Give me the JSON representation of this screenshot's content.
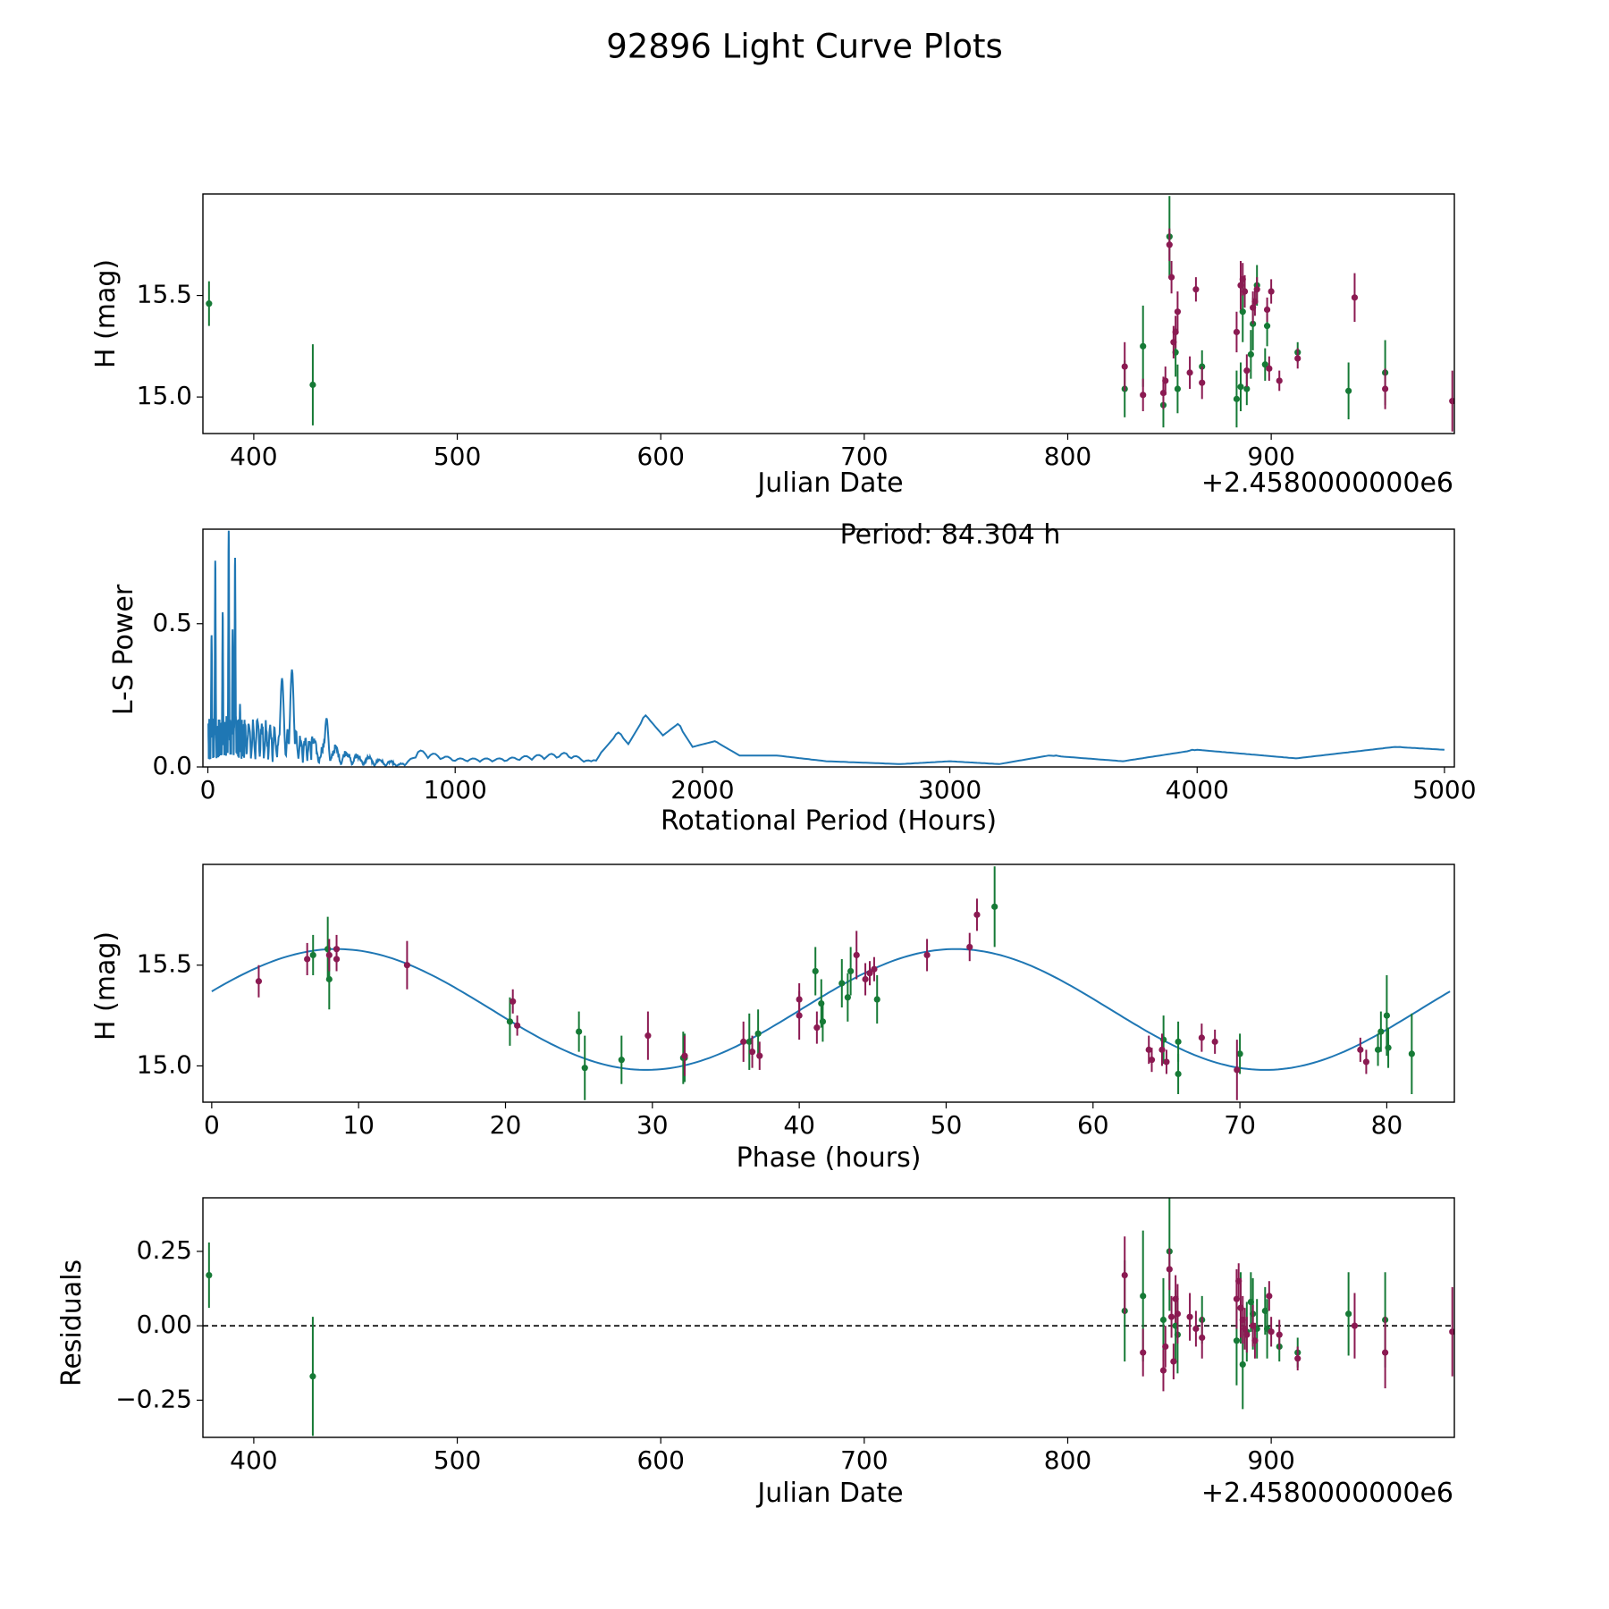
{
  "figure": {
    "title": "92896 Light Curve Plots"
  },
  "colors": {
    "green": "#167a36",
    "magenta": "#8b1a52",
    "curve": "#1f77b4",
    "zero": "#000000"
  },
  "chart_data": [
    {
      "id": "lightcurve",
      "type": "scatter",
      "xlabel": "Julian Date",
      "ylabel": "H (mag)",
      "offset_label": "+2.4580000000e6",
      "xlim": [
        375,
        990
      ],
      "ylim": [
        14.82,
        16.0
      ],
      "xticks": [
        400,
        500,
        600,
        700,
        800,
        900
      ],
      "yticks": [
        15.0,
        15.5
      ],
      "ytick_labels": [
        "15.0",
        "15.5"
      ],
      "series": [
        {
          "name": "green",
          "color_key": "green",
          "x": [
            378,
            429,
            828,
            837,
            847,
            850,
            853,
            854,
            866,
            883,
            885,
            886,
            888,
            890,
            891,
            893,
            897,
            898,
            913,
            938,
            956
          ],
          "y": [
            15.46,
            15.06,
            15.04,
            15.25,
            14.96,
            15.79,
            15.22,
            15.04,
            15.15,
            14.99,
            15.05,
            15.42,
            15.04,
            15.21,
            15.36,
            15.55,
            15.16,
            15.35,
            15.22,
            15.03,
            15.12
          ],
          "err": [
            0.11,
            0.2,
            0.14,
            0.2,
            0.11,
            0.2,
            0.12,
            0.12,
            0.08,
            0.14,
            0.12,
            0.15,
            0.08,
            0.12,
            0.13,
            0.1,
            0.08,
            0.1,
            0.05,
            0.14,
            0.16
          ]
        },
        {
          "name": "magenta",
          "color_key": "magenta",
          "x": [
            828,
            837,
            847,
            848,
            850,
            851,
            852,
            853,
            854,
            860,
            863,
            866,
            883,
            885,
            886,
            887,
            888,
            891,
            892,
            893,
            898,
            899,
            900,
            904,
            913,
            941,
            956,
            989
          ],
          "y": [
            15.15,
            15.01,
            15.02,
            15.08,
            15.75,
            15.59,
            15.27,
            15.32,
            15.42,
            15.12,
            15.53,
            15.07,
            15.32,
            15.55,
            15.58,
            15.52,
            15.13,
            15.44,
            15.47,
            15.53,
            15.43,
            15.14,
            15.52,
            15.08,
            15.19,
            15.49,
            15.04,
            14.98
          ],
          "err": [
            0.12,
            0.08,
            0.08,
            0.07,
            0.08,
            0.08,
            0.08,
            0.08,
            0.1,
            0.08,
            0.06,
            0.08,
            0.1,
            0.12,
            0.08,
            0.08,
            0.08,
            0.08,
            0.07,
            0.06,
            0.06,
            0.06,
            0.06,
            0.05,
            0.05,
            0.12,
            0.1,
            0.15
          ]
        }
      ]
    },
    {
      "id": "periodogram",
      "type": "line",
      "xlabel": "Rotational Period (Hours)",
      "ylabel": "L-S Power",
      "annotation": "Period: 84.304 h",
      "xlim": [
        -20,
        5040
      ],
      "ylim": [
        0,
        0.83
      ],
      "xticks": [
        0,
        1000,
        2000,
        3000,
        4000,
        5000
      ],
      "yticks": [
        0.0,
        0.5
      ],
      "ytick_labels": [
        "0.0",
        "0.5"
      ],
      "peaks": [
        {
          "x": 84.3,
          "power": 0.83
        },
        {
          "x": 110,
          "power": 0.73
        },
        {
          "x": 30,
          "power": 0.72
        },
        {
          "x": 60,
          "power": 0.54
        },
        {
          "x": 100,
          "power": 0.48
        },
        {
          "x": 15,
          "power": 0.46
        },
        {
          "x": 130,
          "power": 0.22
        },
        {
          "x": 300,
          "power": 0.31
        },
        {
          "x": 340,
          "power": 0.34
        },
        {
          "x": 480,
          "power": 0.17
        },
        {
          "x": 1660,
          "power": 0.12
        },
        {
          "x": 1770,
          "power": 0.18
        },
        {
          "x": 1900,
          "power": 0.15
        },
        {
          "x": 2050,
          "power": 0.09
        },
        {
          "x": 3430,
          "power": 0.04
        },
        {
          "x": 3980,
          "power": 0.06
        },
        {
          "x": 4820,
          "power": 0.07
        }
      ],
      "envelope": {
        "x": [
          0,
          200,
          400,
          600,
          800,
          850,
          1000,
          1200,
          1300,
          1450,
          1550,
          1600,
          1660,
          1700,
          1770,
          1840,
          1900,
          1960,
          2050,
          2150,
          2300,
          2500,
          2800,
          3000,
          3200,
          3400,
          3700,
          4000,
          4400,
          4800,
          5000
        ],
        "y": [
          0.18,
          0.18,
          0.12,
          0.05,
          0.01,
          0.06,
          0.03,
          0.03,
          0.04,
          0.05,
          0.02,
          0.06,
          0.12,
          0.08,
          0.18,
          0.11,
          0.15,
          0.07,
          0.09,
          0.04,
          0.04,
          0.02,
          0.01,
          0.02,
          0.01,
          0.04,
          0.02,
          0.06,
          0.03,
          0.07,
          0.06
        ]
      }
    },
    {
      "id": "phased",
      "type": "scatter",
      "xlabel": "Phase (hours)",
      "ylabel": "H (mag)",
      "xlim": [
        -0.6,
        84.6
      ],
      "ylim": [
        14.82,
        16.0
      ],
      "xticks": [
        0,
        10,
        20,
        30,
        40,
        50,
        60,
        70,
        80
      ],
      "yticks": [
        15.0,
        15.5
      ],
      "ytick_labels": [
        "15.0",
        "15.5"
      ],
      "fit": {
        "mean": 15.28,
        "amplitude": 0.3,
        "period": 42.152,
        "peak_phase": 8.5
      },
      "series": [
        {
          "name": "green",
          "color_key": "green",
          "x": [
            6.9,
            7.9,
            8.0,
            20.3,
            25.0,
            25.4,
            27.9,
            32.1,
            32.2,
            36.6,
            37.2,
            41.1,
            41.5,
            41.6,
            42.9,
            43.3,
            43.5,
            45.3,
            53.3,
            64.8,
            65.8,
            65.8,
            70.0,
            79.4,
            79.6,
            80.0,
            80.1,
            81.7
          ],
          "y": [
            15.55,
            15.58,
            15.43,
            15.22,
            15.17,
            14.99,
            15.03,
            15.04,
            15.04,
            15.12,
            15.16,
            15.47,
            15.31,
            15.22,
            15.41,
            15.34,
            15.47,
            15.33,
            15.79,
            15.13,
            15.12,
            14.96,
            15.06,
            15.08,
            15.17,
            15.25,
            15.09,
            15.06
          ],
          "err": [
            0.1,
            0.16,
            0.15,
            0.12,
            0.1,
            0.16,
            0.12,
            0.13,
            0.12,
            0.14,
            0.12,
            0.12,
            0.12,
            0.1,
            0.12,
            0.12,
            0.12,
            0.12,
            0.2,
            0.12,
            0.1,
            0.1,
            0.1,
            0.08,
            0.1,
            0.2,
            0.1,
            0.2
          ]
        },
        {
          "name": "magenta",
          "color_key": "magenta",
          "x": [
            3.2,
            6.5,
            8.0,
            8.5,
            8.5,
            13.3,
            20.5,
            20.8,
            29.7,
            32.2,
            36.2,
            36.8,
            37.3,
            40.0,
            40.0,
            41.2,
            43.9,
            44.5,
            44.8,
            45.1,
            48.7,
            51.6,
            52.1,
            63.8,
            64.0,
            64.7,
            65.0,
            67.4,
            68.3,
            69.8,
            78.2,
            78.6
          ],
          "y": [
            15.42,
            15.53,
            15.55,
            15.58,
            15.53,
            15.5,
            15.32,
            15.2,
            15.15,
            15.05,
            15.12,
            15.07,
            15.05,
            15.33,
            15.25,
            15.19,
            15.55,
            15.43,
            15.46,
            15.48,
            15.55,
            15.59,
            15.75,
            15.08,
            15.03,
            15.08,
            15.02,
            15.14,
            15.12,
            14.98,
            15.08,
            15.02
          ],
          "err": [
            0.08,
            0.08,
            0.08,
            0.07,
            0.06,
            0.12,
            0.06,
            0.05,
            0.12,
            0.1,
            0.1,
            0.08,
            0.07,
            0.08,
            0.12,
            0.08,
            0.12,
            0.08,
            0.06,
            0.06,
            0.08,
            0.07,
            0.08,
            0.07,
            0.06,
            0.08,
            0.06,
            0.07,
            0.06,
            0.15,
            0.06,
            0.06
          ]
        }
      ]
    },
    {
      "id": "residuals",
      "type": "scatter",
      "xlabel": "Julian Date",
      "ylabel": "Residuals",
      "offset_label": "+2.4580000000e6",
      "xlim": [
        375,
        990
      ],
      "ylim": [
        -0.375,
        0.43
      ],
      "xticks": [
        400,
        500,
        600,
        700,
        800,
        900
      ],
      "yticks": [
        -0.25,
        0.0,
        0.25
      ],
      "ytick_labels": [
        "−0.25",
        "0.00",
        "0.25"
      ],
      "zero_line": 0,
      "series": [
        {
          "name": "green",
          "color_key": "green",
          "x": [
            378,
            429,
            828,
            837,
            847,
            850,
            853,
            854,
            866,
            883,
            885,
            886,
            888,
            890,
            891,
            893,
            897,
            898,
            904,
            913,
            938,
            956
          ],
          "y": [
            0.17,
            -0.17,
            0.05,
            0.1,
            0.02,
            0.25,
            0.0,
            -0.03,
            0.02,
            -0.05,
            0.06,
            -0.13,
            -0.02,
            0.08,
            0.04,
            -0.01,
            0.05,
            -0.01,
            -0.07,
            -0.09,
            0.04,
            0.02
          ],
          "err": [
            0.11,
            0.2,
            0.17,
            0.22,
            0.14,
            0.2,
            0.12,
            0.13,
            0.08,
            0.15,
            0.12,
            0.15,
            0.1,
            0.1,
            0.12,
            0.1,
            0.08,
            0.1,
            0.05,
            0.05,
            0.14,
            0.16
          ]
        },
        {
          "name": "magenta",
          "color_key": "magenta",
          "x": [
            828,
            837,
            847,
            848,
            850,
            851,
            852,
            853,
            854,
            860,
            863,
            866,
            883,
            884,
            885,
            886,
            887,
            888,
            891,
            892,
            899,
            900,
            904,
            913,
            941,
            956,
            989
          ],
          "y": [
            0.17,
            -0.09,
            -0.15,
            -0.07,
            0.19,
            0.03,
            -0.12,
            0.09,
            0.04,
            0.03,
            -0.01,
            -0.04,
            0.09,
            0.15,
            0.06,
            0.02,
            -0.01,
            -0.03,
            0.0,
            -0.05,
            0.1,
            -0.02,
            -0.03,
            -0.11,
            0.0,
            -0.09,
            -0.02
          ],
          "err": [
            0.13,
            0.08,
            0.07,
            0.07,
            0.07,
            0.07,
            0.06,
            0.08,
            0.1,
            0.08,
            0.06,
            0.07,
            0.1,
            0.06,
            0.1,
            0.08,
            0.07,
            0.06,
            0.07,
            0.06,
            0.05,
            0.05,
            0.05,
            0.04,
            0.11,
            0.12,
            0.15
          ]
        }
      ]
    }
  ]
}
